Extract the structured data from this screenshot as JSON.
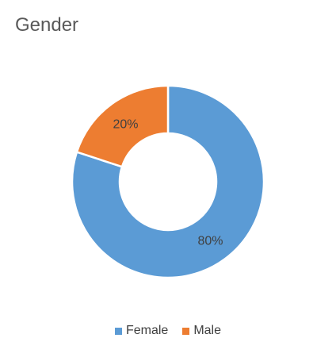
{
  "chart_data": {
    "type": "pie",
    "title": "Gender",
    "series": [
      {
        "name": "Female",
        "value": 80,
        "label": "80%",
        "color": "#5B9BD5"
      },
      {
        "name": "Male",
        "value": 20,
        "label": "20%",
        "color": "#ED7D31"
      }
    ],
    "legend_position": "bottom"
  }
}
